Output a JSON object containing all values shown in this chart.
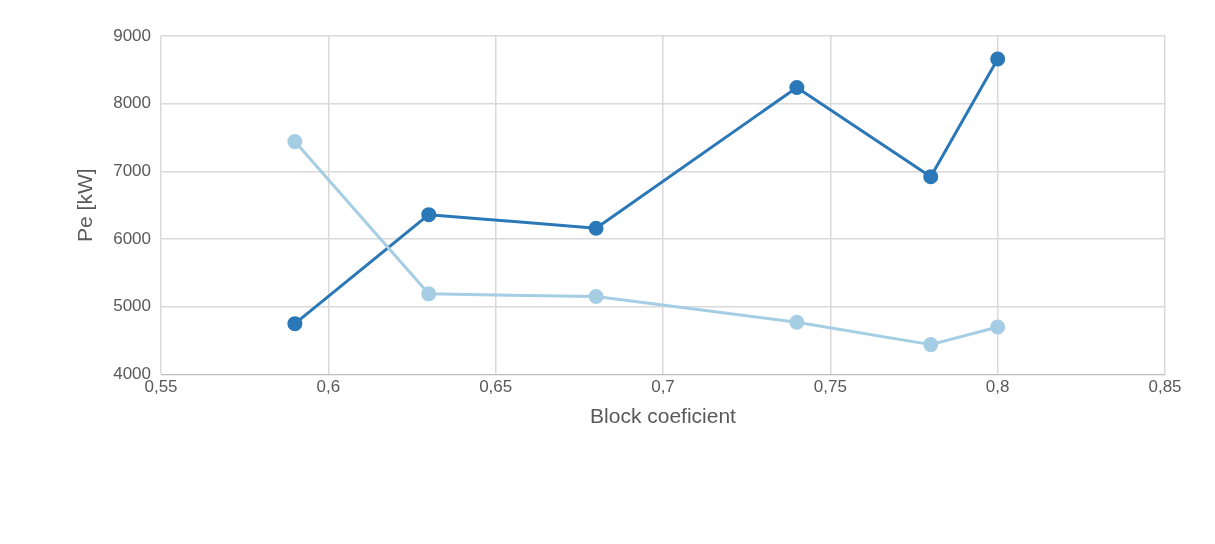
{
  "chart_data": {
    "type": "line",
    "xlabel": "Block coeficient",
    "ylabel": "Pe [kW]",
    "x": [
      0.59,
      0.63,
      0.68,
      0.74,
      0.78,
      0.8
    ],
    "series": [
      {
        "color": "#a5cde3",
        "values": [
          7440,
          5190,
          5150,
          4770,
          4440,
          4700
        ]
      },
      {
        "color": "#2a78b8",
        "values": [
          4750,
          6360,
          6160,
          8240,
          6920,
          8660
        ]
      }
    ],
    "xlim": [
      0.55,
      0.85
    ],
    "xticks": [
      {
        "value": 0.55,
        "label": "0,55"
      },
      {
        "value": 0.6,
        "label": "0,6"
      },
      {
        "value": 0.65,
        "label": "0,65"
      },
      {
        "value": 0.7,
        "label": "0,7"
      },
      {
        "value": 0.75,
        "label": "0,75"
      },
      {
        "value": 0.8,
        "label": "0,8"
      },
      {
        "value": 0.85,
        "label": "0,85"
      }
    ],
    "ylim": [
      4000,
      9000
    ],
    "yticks": [
      4000,
      5000,
      6000,
      7000,
      8000,
      9000
    ],
    "grid": true,
    "marker": "circle",
    "line_style": "solid"
  }
}
